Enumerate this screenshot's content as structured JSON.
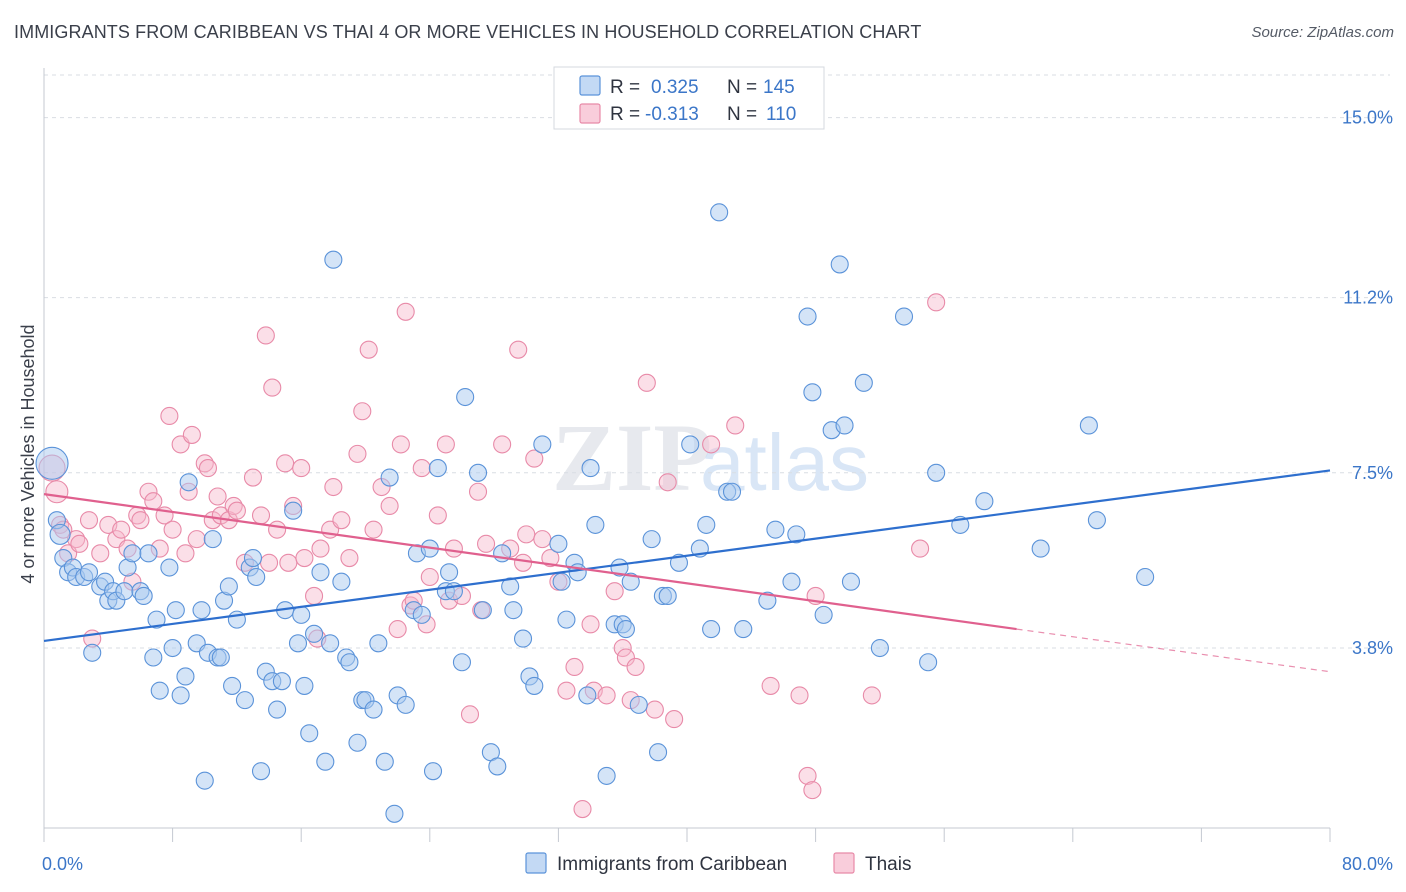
{
  "title": "IMMIGRANTS FROM CARIBBEAN VS THAI 4 OR MORE VEHICLES IN HOUSEHOLD CORRELATION CHART",
  "source": "Source: ZipAtlas.com",
  "watermark": {
    "zip": "ZIP",
    "atlas": "atlas"
  },
  "colors": {
    "blue_fill": "#a9c9f0",
    "blue_stroke": "#5b93d9",
    "blue_line": "#2e6fce",
    "pink_fill": "#f6b8cc",
    "pink_stroke": "#e88aa8",
    "pink_line": "#e0608e",
    "tick_text": "#3b76c8",
    "grid": "#d9dde3"
  },
  "legend": {
    "rows": [
      {
        "r_label": "R = ",
        "r_value": "0.325",
        "n_label": "N = ",
        "n_value": "145"
      },
      {
        "r_label": "R = ",
        "r_value": "-0.313",
        "n_label": "N = ",
        "n_value": "110"
      }
    ]
  },
  "chart_data": {
    "type": "scatter",
    "xlabel": "",
    "ylabel": "4 or more Vehicles in Household",
    "xlim": [
      0,
      80
    ],
    "ylim": [
      0,
      15.9
    ],
    "x_tick_labels": [
      "0.0%",
      "80.0%"
    ],
    "y_ticks": [
      3.8,
      7.5,
      11.2,
      15.0
    ],
    "y_tick_labels": [
      "3.8%",
      "7.5%",
      "11.2%",
      "15.0%"
    ],
    "grid": "horizontal-dashed",
    "legend_placement": "top-center",
    "series": [
      {
        "name": "Immigrants from Caribbean",
        "r": 0.325,
        "n": 145,
        "trend": {
          "x": [
            0,
            80
          ],
          "y": [
            3.95,
            7.55
          ]
        },
        "points": [
          [
            0.5,
            7.7
          ],
          [
            0.8,
            6.5
          ],
          [
            1,
            6.2
          ],
          [
            1.2,
            5.7
          ],
          [
            1.5,
            5.4
          ],
          [
            1.8,
            5.5
          ],
          [
            2,
            5.3
          ],
          [
            2.5,
            5.3
          ],
          [
            2.8,
            5.4
          ],
          [
            3,
            3.7
          ],
          [
            3.5,
            5.1
          ],
          [
            3.8,
            5.2
          ],
          [
            4,
            4.8
          ],
          [
            4.3,
            5.0
          ],
          [
            4.5,
            4.8
          ],
          [
            5,
            5.0
          ],
          [
            5.2,
            5.5
          ],
          [
            5.5,
            5.8
          ],
          [
            6,
            5.0
          ],
          [
            6.2,
            4.9
          ],
          [
            6.5,
            5.8
          ],
          [
            6.8,
            3.6
          ],
          [
            7,
            4.4
          ],
          [
            7.2,
            2.9
          ],
          [
            7.8,
            5.5
          ],
          [
            8,
            3.8
          ],
          [
            8.2,
            4.6
          ],
          [
            8.5,
            2.8
          ],
          [
            8.8,
            3.2
          ],
          [
            9,
            7.3
          ],
          [
            9.5,
            3.9
          ],
          [
            9.8,
            4.6
          ],
          [
            10,
            1.0
          ],
          [
            10.2,
            3.7
          ],
          [
            10.5,
            6.1
          ],
          [
            10.8,
            3.6
          ],
          [
            11,
            3.6
          ],
          [
            11.2,
            4.8
          ],
          [
            11.5,
            5.1
          ],
          [
            11.7,
            3.0
          ],
          [
            12,
            4.4
          ],
          [
            12.5,
            2.7
          ],
          [
            12.8,
            5.5
          ],
          [
            13,
            5.7
          ],
          [
            13.2,
            5.3
          ],
          [
            13.5,
            1.2
          ],
          [
            13.8,
            3.3
          ],
          [
            14.2,
            3.1
          ],
          [
            14.5,
            2.5
          ],
          [
            14.8,
            3.1
          ],
          [
            15,
            4.6
          ],
          [
            15.5,
            6.7
          ],
          [
            15.8,
            3.9
          ],
          [
            16,
            4.5
          ],
          [
            16.2,
            3.0
          ],
          [
            16.5,
            2.0
          ],
          [
            16.8,
            4.1
          ],
          [
            17.2,
            5.4
          ],
          [
            17.5,
            1.4
          ],
          [
            17.8,
            3.9
          ],
          [
            18,
            12.0
          ],
          [
            18.5,
            5.2
          ],
          [
            18.8,
            3.6
          ],
          [
            19,
            3.5
          ],
          [
            19.5,
            1.8
          ],
          [
            19.8,
            2.7
          ],
          [
            20,
            2.7
          ],
          [
            20.5,
            2.5
          ],
          [
            20.8,
            3.9
          ],
          [
            21.2,
            1.4
          ],
          [
            21.5,
            7.4
          ],
          [
            21.8,
            0.3
          ],
          [
            22,
            2.8
          ],
          [
            22.5,
            2.6
          ],
          [
            23,
            4.6
          ],
          [
            23.2,
            5.8
          ],
          [
            23.5,
            4.5
          ],
          [
            24,
            5.9
          ],
          [
            24.2,
            1.2
          ],
          [
            24.5,
            7.6
          ],
          [
            25,
            5.0
          ],
          [
            25.2,
            5.4
          ],
          [
            25.5,
            5.0
          ],
          [
            26,
            3.5
          ],
          [
            26.2,
            9.1
          ],
          [
            27,
            7.5
          ],
          [
            27.3,
            4.6
          ],
          [
            27.8,
            1.6
          ],
          [
            28.2,
            1.3
          ],
          [
            28.5,
            5.8
          ],
          [
            29,
            5.1
          ],
          [
            29.2,
            4.6
          ],
          [
            29.8,
            4.0
          ],
          [
            30.2,
            3.2
          ],
          [
            30.5,
            3.0
          ],
          [
            31,
            8.1
          ],
          [
            32,
            6.0
          ],
          [
            32.2,
            5.2
          ],
          [
            32.5,
            4.4
          ],
          [
            33,
            5.6
          ],
          [
            33.2,
            5.4
          ],
          [
            33.8,
            2.8
          ],
          [
            34,
            7.6
          ],
          [
            34.3,
            6.4
          ],
          [
            35,
            1.1
          ],
          [
            35.5,
            4.3
          ],
          [
            35.8,
            5.5
          ],
          [
            36,
            4.3
          ],
          [
            36.2,
            4.2
          ],
          [
            36.5,
            5.2
          ],
          [
            37,
            2.6
          ],
          [
            37.8,
            6.1
          ],
          [
            38.2,
            1.6
          ],
          [
            38.5,
            4.9
          ],
          [
            38.8,
            4.9
          ],
          [
            39.5,
            5.6
          ],
          [
            40.2,
            8.1
          ],
          [
            40.8,
            5.9
          ],
          [
            41.2,
            6.4
          ],
          [
            41.5,
            4.2
          ],
          [
            42,
            13.0
          ],
          [
            42.5,
            7.1
          ],
          [
            42.8,
            7.1
          ],
          [
            43.5,
            4.2
          ],
          [
            45,
            4.8
          ],
          [
            45.5,
            6.3
          ],
          [
            46.5,
            5.2
          ],
          [
            46.8,
            6.2
          ],
          [
            47.5,
            10.8
          ],
          [
            47.8,
            9.2
          ],
          [
            48.5,
            4.5
          ],
          [
            49,
            8.4
          ],
          [
            49.5,
            11.9
          ],
          [
            49.8,
            8.5
          ],
          [
            50.2,
            5.2
          ],
          [
            51,
            9.4
          ],
          [
            52,
            3.8
          ],
          [
            53.5,
            10.8
          ],
          [
            55,
            3.5
          ],
          [
            55.5,
            7.5
          ],
          [
            57,
            6.4
          ],
          [
            58.5,
            6.9
          ],
          [
            62,
            5.9
          ],
          [
            65,
            8.5
          ],
          [
            65.5,
            6.5
          ],
          [
            68.5,
            5.3
          ]
        ]
      },
      {
        "name": "Thais",
        "r": -0.313,
        "n": 110,
        "trend": {
          "x": [
            0,
            60.5
          ],
          "y": [
            7.05,
            4.2
          ]
        },
        "trend_dashed_extension": {
          "x": [
            60.5,
            80
          ],
          "y": [
            4.2,
            3.3
          ]
        },
        "points": [
          [
            0.5,
            7.6
          ],
          [
            0.8,
            7.1
          ],
          [
            1,
            6.4
          ],
          [
            1.2,
            6.3
          ],
          [
            1.5,
            5.8
          ],
          [
            2,
            6.1
          ],
          [
            2.2,
            6.0
          ],
          [
            2.8,
            6.5
          ],
          [
            3,
            4.0
          ],
          [
            3.5,
            5.8
          ],
          [
            4,
            6.4
          ],
          [
            4.5,
            6.1
          ],
          [
            4.8,
            6.3
          ],
          [
            5.2,
            5.9
          ],
          [
            5.5,
            5.2
          ],
          [
            5.8,
            6.6
          ],
          [
            6,
            6.5
          ],
          [
            6.5,
            7.1
          ],
          [
            6.8,
            6.9
          ],
          [
            7.2,
            5.9
          ],
          [
            7.5,
            6.6
          ],
          [
            7.8,
            8.7
          ],
          [
            8,
            6.3
          ],
          [
            8.5,
            8.1
          ],
          [
            8.8,
            5.8
          ],
          [
            9,
            7.1
          ],
          [
            9.2,
            8.3
          ],
          [
            9.5,
            6.1
          ],
          [
            10,
            7.7
          ],
          [
            10.2,
            7.6
          ],
          [
            10.5,
            6.5
          ],
          [
            10.8,
            7.0
          ],
          [
            11,
            6.6
          ],
          [
            11.5,
            6.5
          ],
          [
            11.8,
            6.8
          ],
          [
            12,
            6.7
          ],
          [
            12.5,
            5.6
          ],
          [
            13,
            7.4
          ],
          [
            13.5,
            6.6
          ],
          [
            13.8,
            10.4
          ],
          [
            14,
            5.6
          ],
          [
            14.2,
            9.3
          ],
          [
            14.5,
            6.3
          ],
          [
            15,
            7.7
          ],
          [
            15.2,
            5.6
          ],
          [
            15.5,
            6.8
          ],
          [
            16,
            7.6
          ],
          [
            16.2,
            5.7
          ],
          [
            16.8,
            4.9
          ],
          [
            17,
            4.0
          ],
          [
            17.2,
            5.9
          ],
          [
            17.8,
            6.3
          ],
          [
            18,
            7.2
          ],
          [
            18.5,
            6.5
          ],
          [
            19,
            5.7
          ],
          [
            19.5,
            7.9
          ],
          [
            19.8,
            8.8
          ],
          [
            20.2,
            10.1
          ],
          [
            20.5,
            6.3
          ],
          [
            21,
            7.2
          ],
          [
            21.5,
            6.8
          ],
          [
            22,
            4.2
          ],
          [
            22.2,
            8.1
          ],
          [
            22.5,
            10.9
          ],
          [
            22.8,
            4.7
          ],
          [
            23,
            4.8
          ],
          [
            23.5,
            7.6
          ],
          [
            23.8,
            4.3
          ],
          [
            24,
            5.3
          ],
          [
            24.5,
            6.6
          ],
          [
            25,
            8.1
          ],
          [
            25.2,
            4.8
          ],
          [
            25.5,
            5.9
          ],
          [
            26,
            4.9
          ],
          [
            26.5,
            2.4
          ],
          [
            27,
            7.1
          ],
          [
            27.2,
            4.6
          ],
          [
            27.5,
            6.0
          ],
          [
            28.5,
            8.1
          ],
          [
            29,
            5.9
          ],
          [
            29.5,
            10.1
          ],
          [
            29.8,
            5.6
          ],
          [
            30,
            6.2
          ],
          [
            30.5,
            7.8
          ],
          [
            31,
            6.1
          ],
          [
            31.5,
            5.7
          ],
          [
            32,
            5.2
          ],
          [
            32.5,
            2.9
          ],
          [
            33,
            3.4
          ],
          [
            33.5,
            0.4
          ],
          [
            34,
            4.3
          ],
          [
            34.2,
            2.9
          ],
          [
            35,
            2.8
          ],
          [
            35.5,
            5.0
          ],
          [
            36,
            3.8
          ],
          [
            36.2,
            3.6
          ],
          [
            36.5,
            2.7
          ],
          [
            36.8,
            3.4
          ],
          [
            37.5,
            9.4
          ],
          [
            38,
            2.5
          ],
          [
            38.8,
            7.3
          ],
          [
            39.2,
            2.3
          ],
          [
            41.5,
            8.1
          ],
          [
            43,
            8.5
          ],
          [
            45.2,
            3.0
          ],
          [
            47,
            2.8
          ],
          [
            47.5,
            1.1
          ],
          [
            47.8,
            0.8
          ],
          [
            48,
            4.9
          ],
          [
            51.5,
            2.8
          ],
          [
            54.5,
            5.9
          ],
          [
            55.5,
            11.1
          ]
        ]
      }
    ]
  },
  "bottom_legend": [
    "Immigrants from Caribbean",
    "Thais"
  ]
}
